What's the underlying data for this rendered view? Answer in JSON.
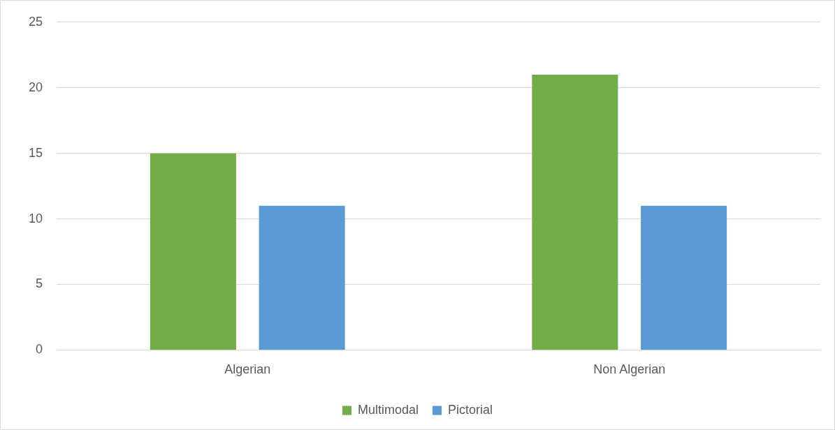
{
  "chart_data": {
    "type": "bar",
    "categories": [
      "Algerian",
      "Non Algerian"
    ],
    "series": [
      {
        "name": "Multimodal",
        "color": "#70ad47",
        "values": [
          15,
          21
        ]
      },
      {
        "name": "Pictorial",
        "color": "#5b9bd5",
        "values": [
          11,
          11
        ]
      }
    ],
    "ylim": [
      0,
      25
    ],
    "yticks": [
      0,
      5,
      10,
      15,
      20,
      25
    ],
    "grid": "y",
    "legend": "bottom"
  }
}
